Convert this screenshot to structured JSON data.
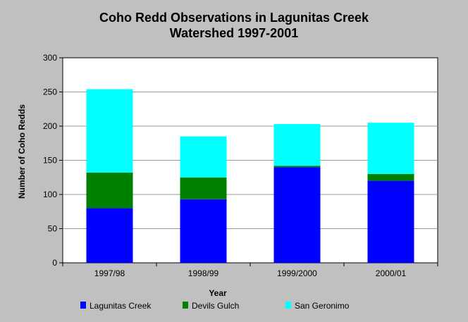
{
  "chart_data": {
    "type": "bar",
    "stacked": true,
    "title_line1": "Coho Redd Observations in Lagunitas Creek",
    "title_line2": "Watershed 1997-2001",
    "xlabel": "Year",
    "ylabel": "Number of Coho Redds",
    "ylim": [
      0,
      300
    ],
    "yticks": [
      "0",
      "50",
      "100",
      "150",
      "200",
      "250",
      "300"
    ],
    "categories": [
      "1997/98",
      "1998/99",
      "1999/2000",
      "2000/01"
    ],
    "series": [
      {
        "name": "Lagunitas Creek",
        "color": "#0000ff",
        "values": [
          80,
          93,
          140,
          120
        ]
      },
      {
        "name": "Devils Gulch",
        "color": "#008000",
        "values": [
          52,
          32,
          2,
          10
        ]
      },
      {
        "name": "San Geronimo",
        "color": "#00ffff",
        "values": [
          122,
          60,
          61,
          75
        ]
      }
    ],
    "grid": true,
    "legend_position": "bottom"
  }
}
